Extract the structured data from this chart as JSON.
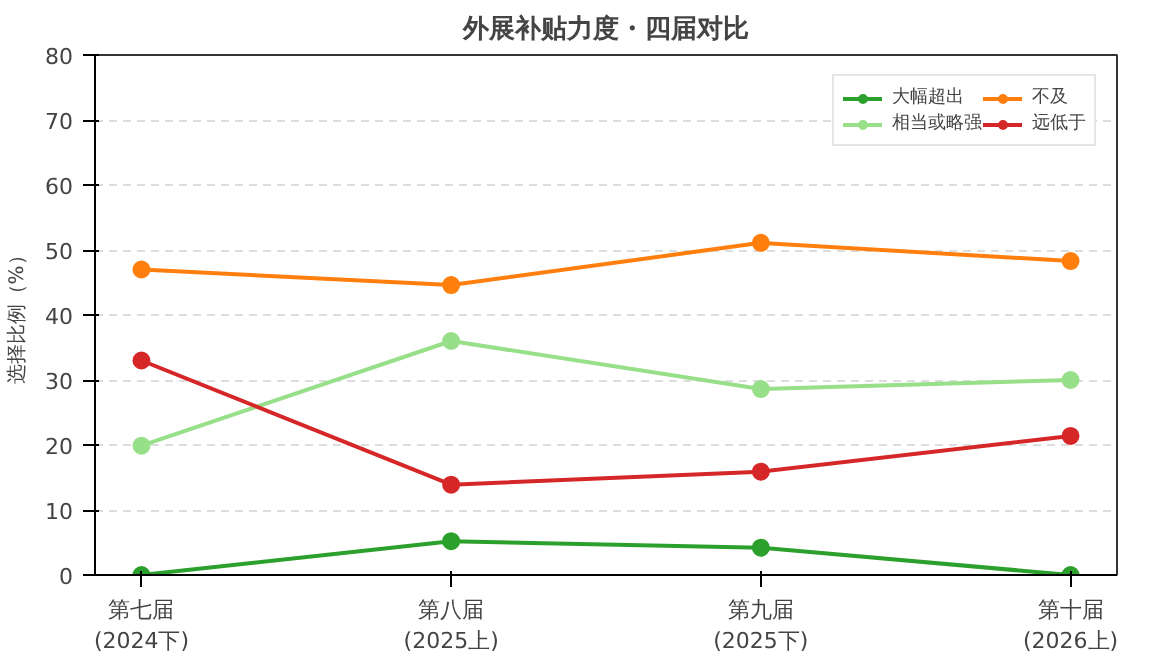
{
  "chart_data": {
    "type": "line",
    "title": "外展补贴力度・四届对比",
    "ylabel": "选择比例（%）",
    "categories": [
      "第七届\n(2024下)",
      "第八届\n(2025上)",
      "第九届\n(2025下)",
      "第十届\n(2026上)"
    ],
    "series": [
      {
        "name": "大幅超出",
        "color": "#2ca02c",
        "values": [
          0,
          5.2,
          4.2,
          0
        ]
      },
      {
        "name": "相当或略强",
        "color": "#98df8a",
        "values": [
          19.9,
          36,
          28.6,
          30
        ]
      },
      {
        "name": "不及",
        "color": "#ff7f0e",
        "values": [
          47,
          44.6,
          51.1,
          48.3
        ]
      },
      {
        "name": "远低于",
        "color": "#d62728",
        "values": [
          33,
          13.9,
          15.9,
          21.4
        ]
      }
    ],
    "ylim": [
      0,
      80
    ],
    "yticks": [
      0,
      10,
      20,
      30,
      40,
      50,
      60,
      70,
      80
    ],
    "grid": "y",
    "legend": "top right",
    "marker": "circle",
    "line_style": "solid"
  }
}
